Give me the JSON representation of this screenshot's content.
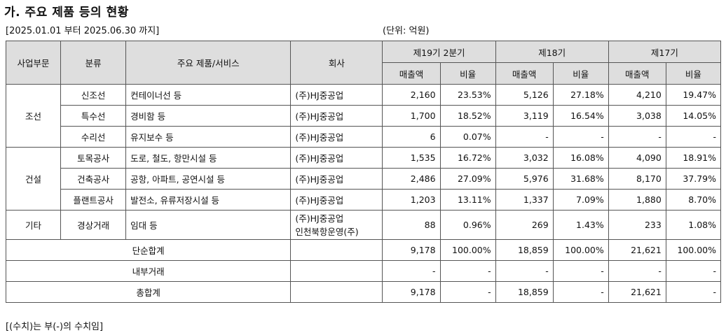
{
  "title": "가. 주요 제품 등의 현황",
  "period": "[2025.01.01 부터 2025.06.30 까지]",
  "unit": "(단위: 억원)",
  "footnote": "[(수치)는 부(-)의 수치임]",
  "headers": {
    "division": "사업부문",
    "category": "분류",
    "product": "주요 제품/서비스",
    "company": "회사",
    "periods": [
      "제19기 2분기",
      "제18기",
      "제17기"
    ],
    "sales": "매출액",
    "ratio": "비율"
  },
  "divisions": [
    "조선",
    "건설",
    "기타"
  ],
  "rows": [
    {
      "category": "신조선",
      "product": "컨테이너선 등",
      "company": "(주)HJ중공업",
      "v": [
        "2,160",
        "23.53%",
        "5,126",
        "27.18%",
        "4,210",
        "19.47%"
      ]
    },
    {
      "category": "특수선",
      "product": "경비함 등",
      "company": "(주)HJ중공업",
      "v": [
        "1,700",
        "18.52%",
        "3,119",
        "16.54%",
        "3,038",
        "14.05%"
      ]
    },
    {
      "category": "수리선",
      "product": "유지보수 등",
      "company": "(주)HJ중공업",
      "v": [
        "6",
        "0.07%",
        "-",
        "-",
        "-",
        "-"
      ]
    },
    {
      "category": "토목공사",
      "product": "도로, 철도, 항만시설 등",
      "company": "(주)HJ중공업",
      "v": [
        "1,535",
        "16.72%",
        "3,032",
        "16.08%",
        "4,090",
        "18.91%"
      ]
    },
    {
      "category": "건축공사",
      "product": "공항, 아파트, 공연시설 등",
      "company": "(주)HJ중공업",
      "v": [
        "2,486",
        "27.09%",
        "5,976",
        "31.68%",
        "8,170",
        "37.79%"
      ]
    },
    {
      "category": "플랜트공사",
      "product": "발전소, 유류저장시설 등",
      "company": "(주)HJ중공업",
      "v": [
        "1,203",
        "13.11%",
        "1,337",
        "7.09%",
        "1,880",
        "8.70%"
      ]
    },
    {
      "category": "경상거래",
      "product": "임대 등",
      "company": "(주)HJ중공업",
      "company2": "인천북항운영(주)",
      "v": [
        "88",
        "0.96%",
        "269",
        "1.43%",
        "233",
        "1.08%"
      ]
    }
  ],
  "totals": [
    {
      "label": "단순합계",
      "v": [
        "9,178",
        "100.00%",
        "18,859",
        "100.00%",
        "21,621",
        "100.00%"
      ]
    },
    {
      "label": "내부거래",
      "v": [
        "-",
        "-",
        "-",
        "-",
        "-",
        "-"
      ]
    },
    {
      "label": "총합계",
      "v": [
        "9,178",
        "-",
        "18,859",
        "-",
        "21,621",
        "-"
      ]
    }
  ]
}
